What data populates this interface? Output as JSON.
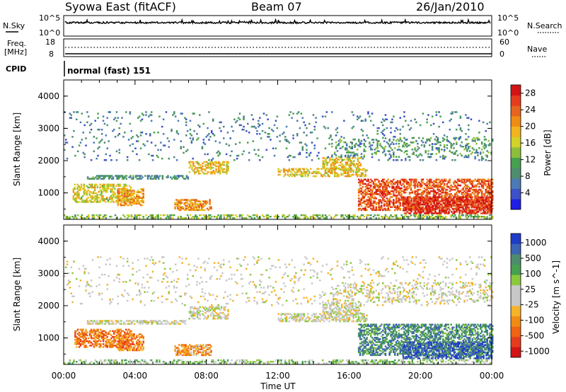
{
  "header": {
    "station": "Syowa East (fitACF)",
    "beam": "Beam 07",
    "date": "26/Jan/2010"
  },
  "aux_panels": {
    "nsky_label": "N.Sky",
    "nsearch_label": "N.Search",
    "noise_ticks": [
      "10^5",
      "10^0"
    ],
    "freq_label_line1": "Freq.",
    "freq_label_line2": "[MHz]",
    "freq_ticks": [
      "18",
      "8"
    ],
    "nave_label": "Nave",
    "nave_ticks": [
      "60",
      "0"
    ],
    "cpid_label": "CPID",
    "cpid_value": "normal (fast) 151"
  },
  "chart_data": [
    {
      "type": "heatmap",
      "name": "power",
      "ylabel": "Slant Range [km]",
      "xlabel": "",
      "x_ticks": [
        "00:00",
        "04:00",
        "08:00",
        "12:00",
        "16:00",
        "20:00",
        "00:00"
      ],
      "xlim_hours": [
        0,
        24
      ],
      "y_ticks": [
        1000,
        2000,
        3000,
        4000
      ],
      "ylim": [
        180,
        4500
      ],
      "colorbar": {
        "label": "Power [dB]",
        "ticks": [
          "28",
          "24",
          "20",
          "16",
          "12",
          "8",
          "4"
        ],
        "range": [
          0,
          30
        ],
        "colors": [
          "#1e1ee6",
          "#3c50c8",
          "#4b7ab4",
          "#4e8c6e",
          "#46a050",
          "#8cbe3c",
          "#d2d228",
          "#f0b41e",
          "#f08c14",
          "#e6641e",
          "#e63c1e",
          "#d21414"
        ]
      },
      "features": [
        {
          "t": [
            1.3,
            7.0
          ],
          "r": [
            1420,
            1540
          ],
          "level": 0.3,
          "density": 0.6
        },
        {
          "t": [
            0.5,
            3.8
          ],
          "r": [
            700,
            1250
          ],
          "level": 0.55,
          "density": 0.55
        },
        {
          "t": [
            3.0,
            4.5
          ],
          "r": [
            600,
            1100
          ],
          "level": 0.7,
          "density": 0.6
        },
        {
          "t": [
            7.0,
            9.2
          ],
          "r": [
            1580,
            1950
          ],
          "level": 0.6,
          "density": 0.55
        },
        {
          "t": [
            6.2,
            8.3
          ],
          "r": [
            450,
            800
          ],
          "level": 0.7,
          "density": 0.6
        },
        {
          "t": [
            12.0,
            17.0
          ],
          "r": [
            1500,
            1750
          ],
          "level": 0.6,
          "density": 0.45
        },
        {
          "t": [
            14.5,
            16.6
          ],
          "r": [
            1700,
            2100
          ],
          "level": 0.6,
          "density": 0.5
        },
        {
          "t": [
            16.5,
            24.0
          ],
          "r": [
            450,
            1400
          ],
          "level": 0.82,
          "density": 0.55
        },
        {
          "t": [
            19.0,
            24.0
          ],
          "r": [
            350,
            850
          ],
          "level": 0.92,
          "density": 0.6
        },
        {
          "t": [
            15.0,
            24.0
          ],
          "r": [
            2100,
            2700
          ],
          "level": 0.35,
          "density": 0.18
        },
        {
          "t": [
            0.0,
            24.0
          ],
          "r": [
            200,
            330
          ],
          "level": 0.45,
          "density": 0.4
        },
        {
          "t": [
            0.0,
            24.0
          ],
          "r": [
            2000,
            3500
          ],
          "level": 0.25,
          "density": 0.06
        }
      ]
    },
    {
      "type": "heatmap",
      "name": "velocity",
      "ylabel": "Slant Range [km]",
      "xlabel": "Time UT",
      "x_ticks": [
        "00:00",
        "04:00",
        "08:00",
        "12:00",
        "16:00",
        "20:00",
        "00:00"
      ],
      "xlim_hours": [
        0,
        24
      ],
      "y_ticks": [
        1000,
        2000,
        3000,
        4000
      ],
      "ylim": [
        180,
        4500
      ],
      "colorbar": {
        "label": "Velocity [m s^-1]",
        "ticks": [
          "1000",
          "500",
          "100",
          "25",
          "-25",
          "-100",
          "-500",
          "-1000"
        ],
        "range": [
          -1200,
          1200
        ],
        "colors": [
          "#d21414",
          "#e63c1e",
          "#f06414",
          "#f08c14",
          "#f5b428",
          "#c8c8c8",
          "#c8c8c8",
          "#8cc83c",
          "#46a050",
          "#4e8c6e",
          "#3c64b4",
          "#1e3cc8"
        ]
      },
      "features": [
        {
          "t": [
            1.3,
            7.0
          ],
          "r": [
            1420,
            1540
          ],
          "level": 0.5,
          "density": 0.6
        },
        {
          "t": [
            0.6,
            3.8
          ],
          "r": [
            700,
            1250
          ],
          "level": 0.25,
          "density": 0.55
        },
        {
          "t": [
            3.0,
            4.5
          ],
          "r": [
            600,
            1100
          ],
          "level": 0.25,
          "density": 0.55
        },
        {
          "t": [
            7.0,
            9.2
          ],
          "r": [
            1580,
            1950
          ],
          "level": 0.5,
          "density": 0.5
        },
        {
          "t": [
            6.2,
            8.3
          ],
          "r": [
            450,
            800
          ],
          "level": 0.33,
          "density": 0.65
        },
        {
          "t": [
            12.0,
            17.0
          ],
          "r": [
            1500,
            1750
          ],
          "level": 0.5,
          "density": 0.45
        },
        {
          "t": [
            14.5,
            16.6
          ],
          "r": [
            1700,
            2100
          ],
          "level": 0.5,
          "density": 0.5
        },
        {
          "t": [
            16.5,
            24.0
          ],
          "r": [
            450,
            1400
          ],
          "level": 0.78,
          "density": 0.55
        },
        {
          "t": [
            19.0,
            24.0
          ],
          "r": [
            350,
            850
          ],
          "level": 0.88,
          "density": 0.55
        },
        {
          "t": [
            15.0,
            24.0
          ],
          "r": [
            2100,
            2700
          ],
          "level": 0.5,
          "density": 0.18
        },
        {
          "t": [
            0.0,
            24.0
          ],
          "r": [
            200,
            330
          ],
          "level": 0.62,
          "density": 0.35
        },
        {
          "t": [
            0.0,
            24.0
          ],
          "r": [
            2000,
            3500
          ],
          "level": 0.48,
          "density": 0.06
        }
      ]
    }
  ]
}
